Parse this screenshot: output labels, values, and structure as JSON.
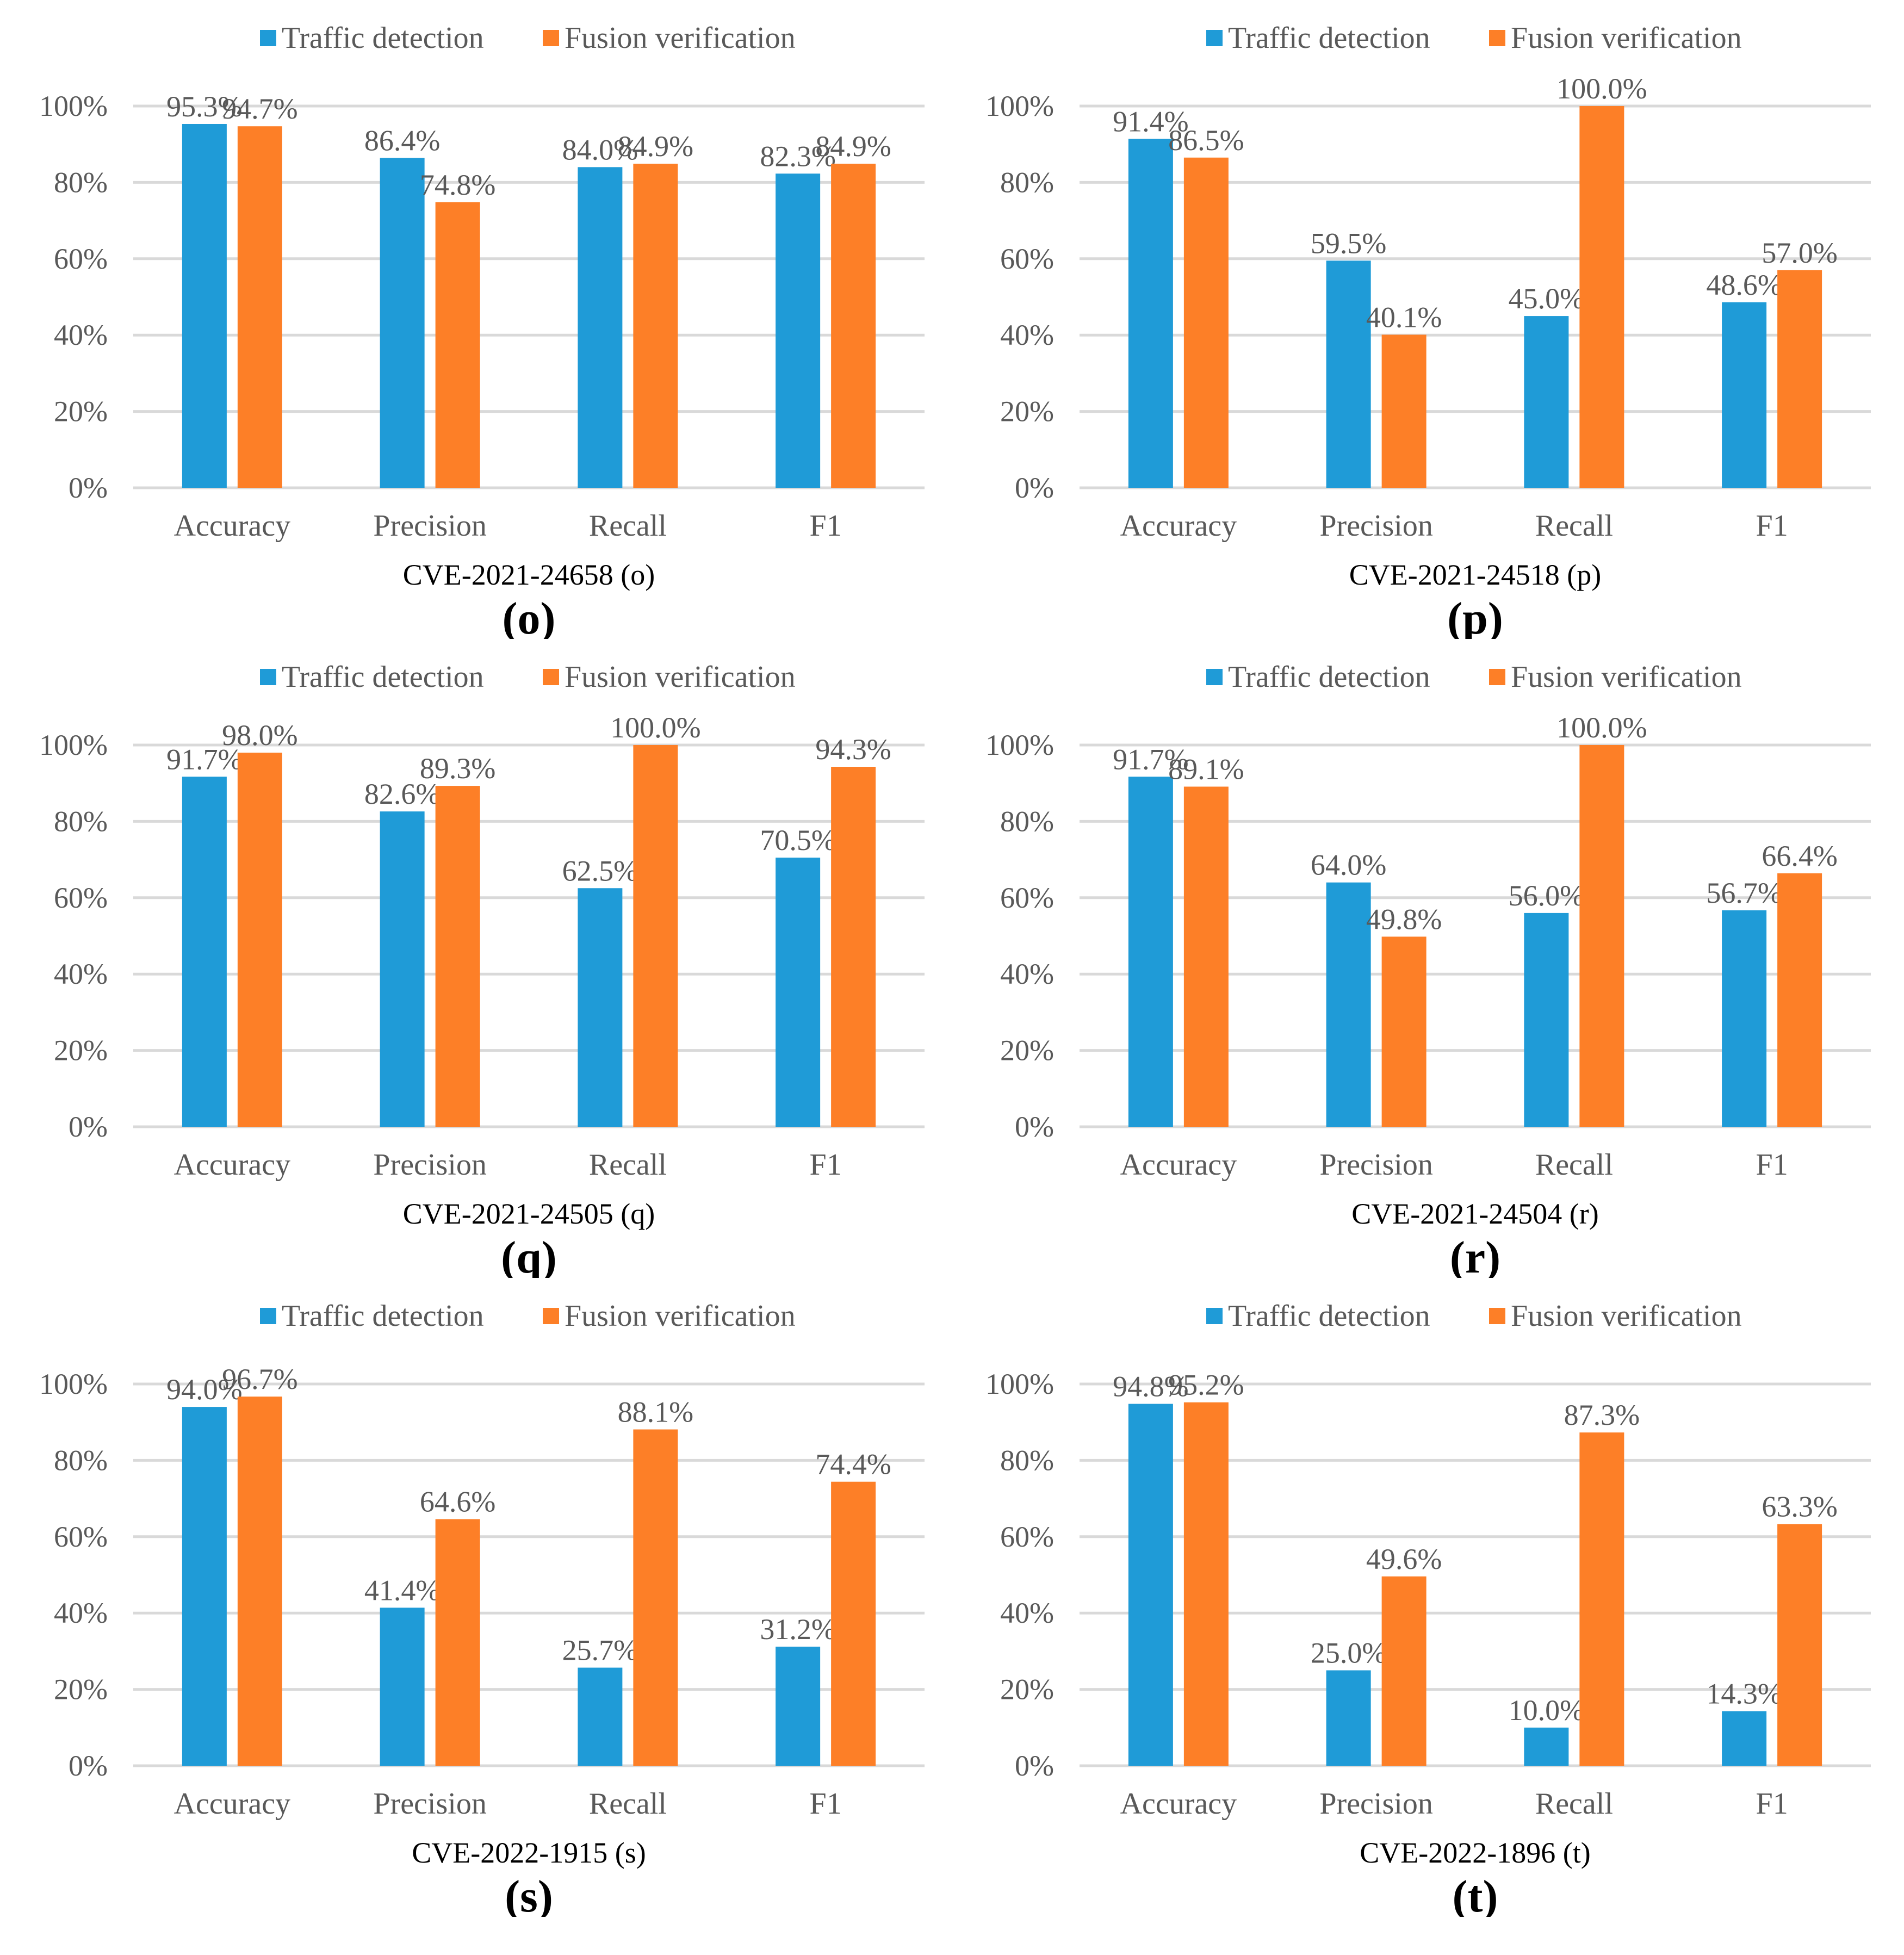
{
  "colors": {
    "traffic": "#1f9bd7",
    "fusion": "#fd7f27",
    "grid": "#d9d9d9",
    "axis_text": "#595959"
  },
  "chart_data": [
    {
      "type": "bar",
      "letter": "(o)",
      "xlabel": "CVE-2021-24658 (o)",
      "categories": [
        "Accuracy",
        "Precision",
        "Recall",
        "F1"
      ],
      "yticks": [
        "0%",
        "20%",
        "40%",
        "60%",
        "80%",
        "100%"
      ],
      "ylim": [
        0,
        100
      ],
      "series": [
        {
          "name": "Traffic detection",
          "values": [
            95.3,
            86.4,
            84.0,
            82.3
          ],
          "labels": [
            "95.3%",
            "86.4%",
            "84.0%",
            "82.3%"
          ]
        },
        {
          "name": "Fusion verification",
          "values": [
            94.7,
            74.8,
            84.9,
            84.9
          ],
          "labels": [
            "94.7%",
            "74.8%",
            "84.9%",
            "84.9%"
          ]
        }
      ]
    },
    {
      "type": "bar",
      "letter": "(p)",
      "xlabel": "CVE-2021-24518 (p)",
      "categories": [
        "Accuracy",
        "Precision",
        "Recall",
        "F1"
      ],
      "yticks": [
        "0%",
        "20%",
        "40%",
        "60%",
        "80%",
        "100%"
      ],
      "ylim": [
        0,
        100
      ],
      "series": [
        {
          "name": "Traffic detection",
          "values": [
            91.4,
            59.5,
            45.0,
            48.6
          ],
          "labels": [
            "91.4%",
            "59.5%",
            "45.0%",
            "48.6%"
          ]
        },
        {
          "name": "Fusion verification",
          "values": [
            86.5,
            40.1,
            100.0,
            57.0
          ],
          "labels": [
            "86.5%",
            "40.1%",
            "100.0%",
            "57.0%"
          ]
        }
      ]
    },
    {
      "type": "bar",
      "letter": "(q)",
      "xlabel": "CVE-2021-24505 (q)",
      "categories": [
        "Accuracy",
        "Precision",
        "Recall",
        "F1"
      ],
      "yticks": [
        "0%",
        "20%",
        "40%",
        "60%",
        "80%",
        "100%"
      ],
      "ylim": [
        0,
        100
      ],
      "series": [
        {
          "name": "Traffic detection",
          "values": [
            91.7,
            82.6,
            62.5,
            70.5
          ],
          "labels": [
            "91.7%",
            "82.6%",
            "62.5%",
            "70.5%"
          ]
        },
        {
          "name": "Fusion verification",
          "values": [
            98.0,
            89.3,
            100.0,
            94.3
          ],
          "labels": [
            "98.0%",
            "89.3%",
            "100.0%",
            "94.3%"
          ]
        }
      ]
    },
    {
      "type": "bar",
      "letter": "(r)",
      "xlabel": "CVE-2021-24504 (r)",
      "categories": [
        "Accuracy",
        "Precision",
        "Recall",
        "F1"
      ],
      "yticks": [
        "0%",
        "20%",
        "40%",
        "60%",
        "80%",
        "100%"
      ],
      "ylim": [
        0,
        100
      ],
      "series": [
        {
          "name": "Traffic detection",
          "values": [
            91.7,
            64.0,
            56.0,
            56.7
          ],
          "labels": [
            "91.7%",
            "64.0%",
            "56.0%",
            "56.7%"
          ]
        },
        {
          "name": "Fusion verification",
          "values": [
            89.1,
            49.8,
            100.0,
            66.4
          ],
          "labels": [
            "89.1%",
            "49.8%",
            "100.0%",
            "66.4%"
          ]
        }
      ]
    },
    {
      "type": "bar",
      "letter": "(s)",
      "xlabel": "CVE-2022-1915 (s)",
      "categories": [
        "Accuracy",
        "Precision",
        "Recall",
        "F1"
      ],
      "yticks": [
        "0%",
        "20%",
        "40%",
        "60%",
        "80%",
        "100%"
      ],
      "ylim": [
        0,
        100
      ],
      "series": [
        {
          "name": "Traffic detection",
          "values": [
            94.0,
            41.4,
            25.7,
            31.2
          ],
          "labels": [
            "94.0%",
            "41.4%",
            "25.7%",
            "31.2%"
          ]
        },
        {
          "name": "Fusion verification",
          "values": [
            96.7,
            64.6,
            88.1,
            74.4
          ],
          "labels": [
            "96.7%",
            "64.6%",
            "88.1%",
            "74.4%"
          ]
        }
      ]
    },
    {
      "type": "bar",
      "letter": "(t)",
      "xlabel": "CVE-2022-1896 (t)",
      "categories": [
        "Accuracy",
        "Precision",
        "Recall",
        "F1"
      ],
      "yticks": [
        "0%",
        "20%",
        "40%",
        "60%",
        "80%",
        "100%"
      ],
      "ylim": [
        0,
        100
      ],
      "series": [
        {
          "name": "Traffic detection",
          "values": [
            94.8,
            25.0,
            10.0,
            14.3
          ],
          "labels": [
            "94.8%",
            "25.0%",
            "10.0%",
            "14.3%"
          ]
        },
        {
          "name": "Fusion verification",
          "values": [
            95.2,
            49.6,
            87.3,
            63.3
          ],
          "labels": [
            "95.2%",
            "49.6%",
            "87.3%",
            "63.3%"
          ]
        }
      ]
    }
  ]
}
